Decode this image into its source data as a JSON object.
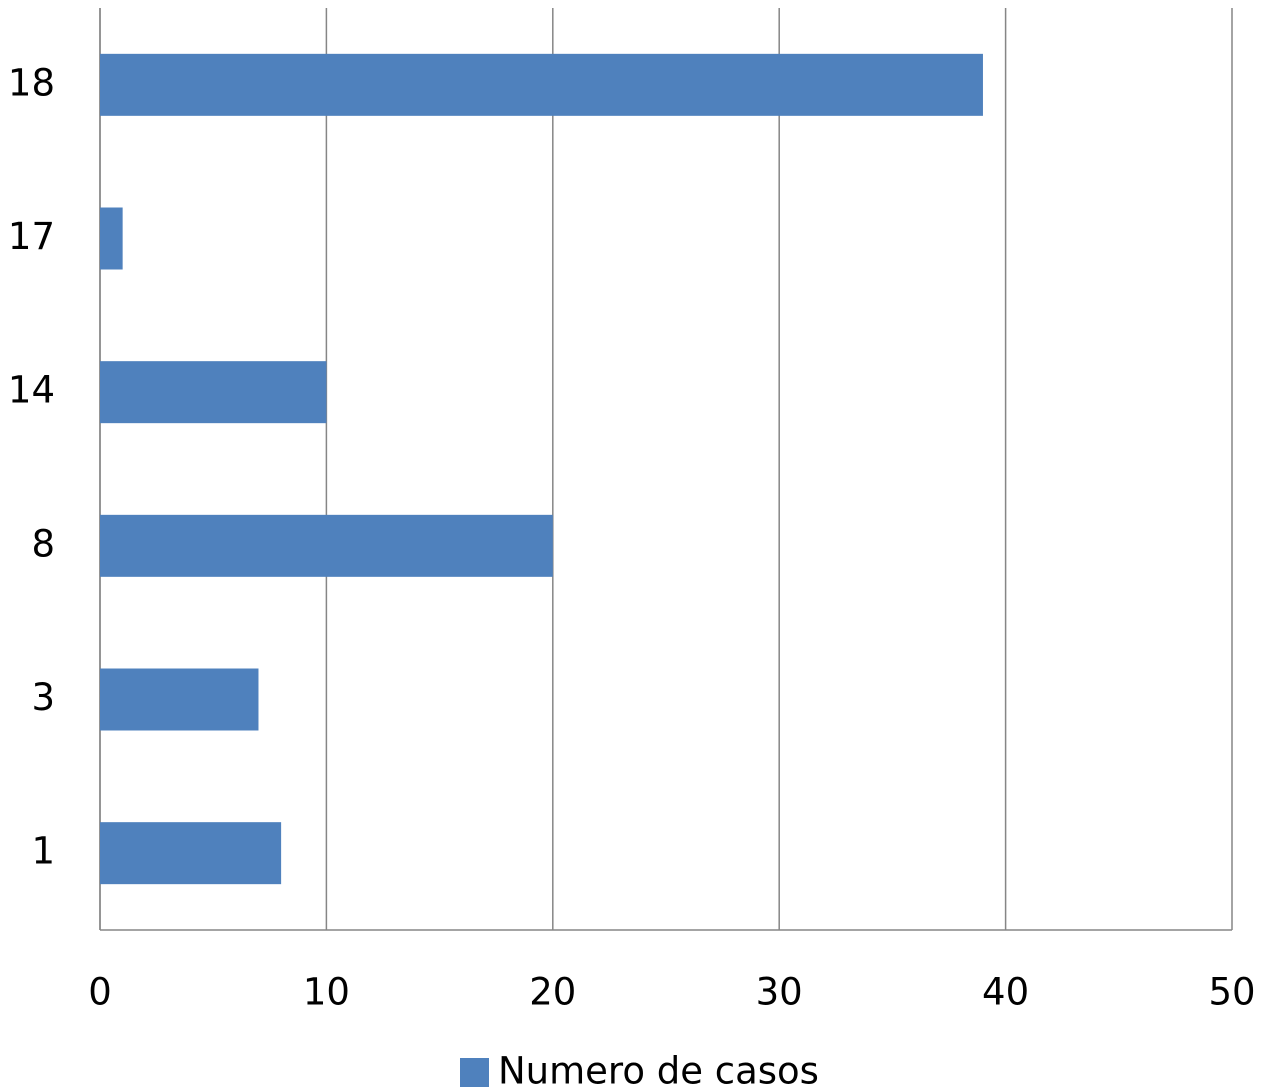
{
  "chart_data": {
    "type": "barh",
    "categories": [
      "1",
      "3",
      "8",
      "14",
      "17",
      "18"
    ],
    "series": [
      {
        "name": "Numero de casos",
        "color": "#4f81bd",
        "values": [
          8,
          7,
          20,
          10,
          1,
          39
        ]
      }
    ],
    "xlim": [
      0,
      50
    ],
    "xticks": [
      0,
      10,
      20,
      30,
      40,
      50
    ],
    "grid": true,
    "legend": "bottom"
  }
}
